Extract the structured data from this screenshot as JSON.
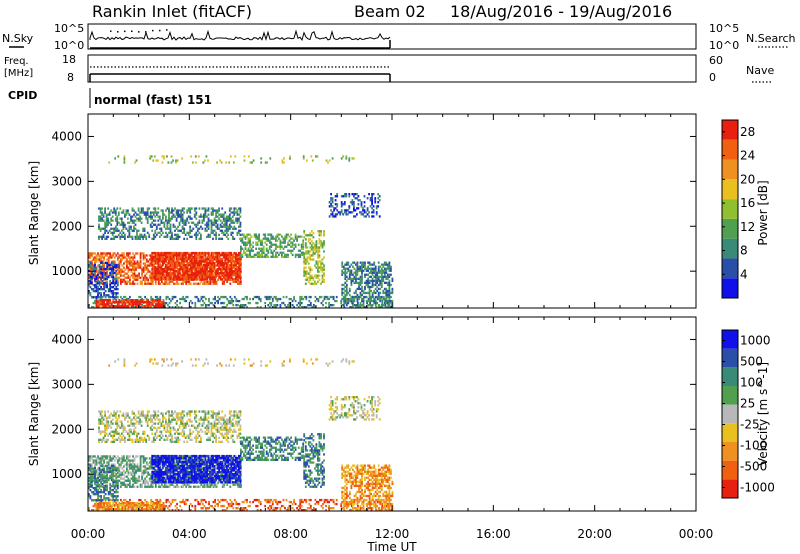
{
  "header": {
    "radar": "Rankin Inlet (fitACF)",
    "beam": "Beam 02",
    "date_range": "18/Aug/2016 - 19/Aug/2016"
  },
  "summary_panels": {
    "nsky": {
      "label": "N.Sky",
      "left_ticks": [
        "10^5",
        "10^0"
      ],
      "right_ticks": [
        "10^5",
        "10^0"
      ],
      "right_label": "N.Search"
    },
    "freq": {
      "label_line1": "Freq.",
      "label_line2": "[MHz]",
      "left_ticks": [
        "18",
        "8"
      ],
      "right_ticks": [
        "60",
        "0"
      ],
      "right_label": "Nave"
    },
    "cpid": {
      "label": "CPID",
      "text": "normal (fast) 151"
    }
  },
  "colors": {
    "power_scale": [
      "#1010e8",
      "#2a4fa8",
      "#3a8a78",
      "#50a050",
      "#90c030",
      "#e8c020",
      "#f09020",
      "#f06010",
      "#e82010"
    ],
    "velocity_scale": [
      "#1010e8",
      "#2a4fa8",
      "#3a8a78",
      "#50a050",
      "#b8b8b8",
      "#e8c020",
      "#f09020",
      "#f06010",
      "#e82010"
    ]
  },
  "chart_data": [
    {
      "type": "heatmap",
      "panel": "power",
      "ylabel": "Slant Range [km]",
      "yticks": [
        "1000",
        "2000",
        "3000",
        "4000"
      ],
      "ylim": [
        180,
        4500
      ],
      "xlim": [
        "00:00",
        "24:00"
      ],
      "colorbar_label": "Power [dB]",
      "colorbar_ticks": [
        "4",
        "8",
        "12",
        "16",
        "20",
        "24",
        "28"
      ],
      "colorbar_range": [
        0,
        30
      ],
      "data_end_time": "12:00"
    },
    {
      "type": "heatmap",
      "panel": "velocity",
      "ylabel": "Slant Range [km]",
      "yticks": [
        "1000",
        "2000",
        "3000",
        "4000"
      ],
      "ylim": [
        180,
        4500
      ],
      "xlim": [
        "00:00",
        "24:00"
      ],
      "xlabel": "Time UT",
      "xticks": [
        "00:00",
        "04:00",
        "08:00",
        "12:00",
        "16:00",
        "20:00",
        "00:00"
      ],
      "colorbar_label": "Velocity [m s^-1]",
      "colorbar_ticks": [
        "1000",
        "500",
        "100",
        "25",
        "-25",
        "-100",
        "-500",
        "-1000"
      ],
      "data_end_time": "12:00"
    }
  ]
}
